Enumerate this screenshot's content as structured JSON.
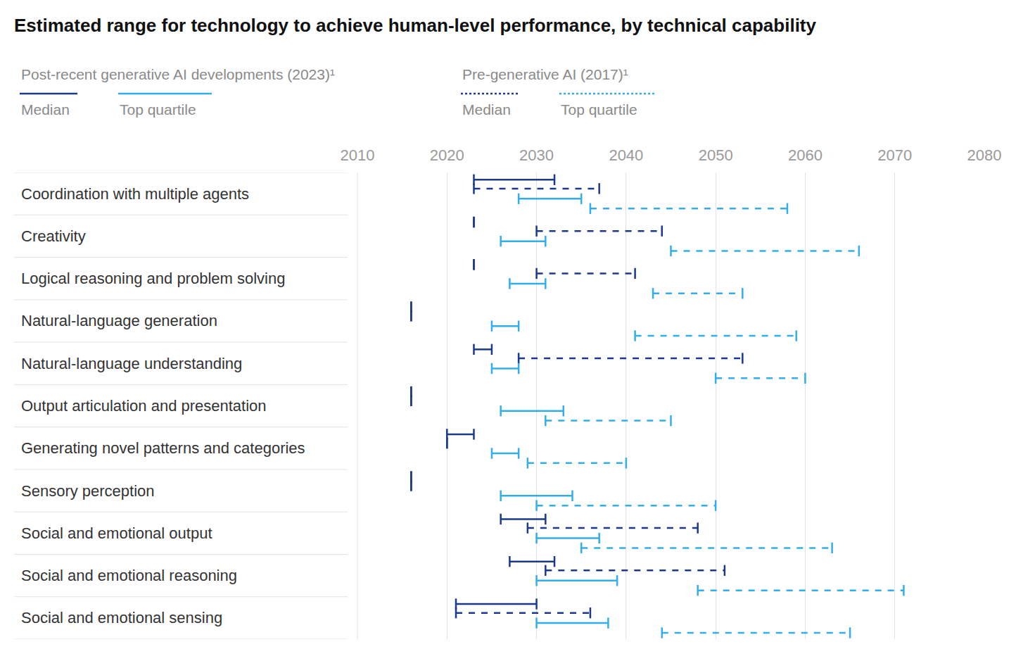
{
  "chart_data": {
    "type": "range",
    "title": "Estimated range for technology to achieve human-level performance, by technical capability",
    "orientation": "horizontal",
    "categories": [
      "Coordination with multiple agents",
      "Creativity",
      "Logical reasoning and problem solving",
      "Natural-language generation",
      "Natural-language understanding",
      "Output articulation and presentation",
      "Generating novel patterns and categories",
      "Sensory perception",
      "Social and emotional output",
      "Social and emotional reasoning",
      "Social and emotional sensing"
    ],
    "xlim": [
      2010,
      2080
    ],
    "xticks": [
      2010,
      2020,
      2030,
      2040,
      2050,
      2060,
      2070,
      2080
    ],
    "grid": true,
    "legend": "top left",
    "series": [
      {
        "name": "Median",
        "group": "Post-recent generative AI developments (2023)¹",
        "color": "#1b3a8c",
        "line_style": "solid",
        "start": [
          2023,
          2023,
          2023,
          2016,
          2023,
          2016,
          2020,
          2016,
          2026,
          2027,
          2021
        ],
        "end": [
          2032,
          2023,
          2023,
          2016,
          2025,
          2016,
          2023,
          2016,
          2031,
          2032,
          2030
        ]
      },
      {
        "name": "Median",
        "group": "Pre-generative AI (2017)¹",
        "color": "#1b3a8c",
        "line_style": "dash",
        "start": [
          2023,
          2030,
          2030,
          2016,
          2028,
          2016,
          2020,
          2016,
          2029,
          2031,
          2021
        ],
        "end": [
          2037,
          2044,
          2041,
          2016,
          2053,
          2016,
          2020,
          2016,
          2048,
          2051,
          2036
        ]
      },
      {
        "name": "Top quartile",
        "group": "Post-recent generative AI developments (2023)¹",
        "color": "#33aee8",
        "line_style": "solid",
        "start": [
          2028,
          2026,
          2027,
          2025,
          2025,
          2026,
          2025,
          2026,
          2030,
          2030,
          2030
        ],
        "end": [
          2035,
          2031,
          2031,
          2028,
          2028,
          2033,
          2028,
          2034,
          2037,
          2039,
          2038
        ]
      },
      {
        "name": "Top quartile",
        "group": "Pre-generative AI (2017)¹",
        "color": "#33aee8",
        "line_style": "dash",
        "start": [
          2036,
          2045,
          2043,
          2041,
          2050,
          2031,
          2029,
          2030,
          2035,
          2048,
          2044
        ],
        "end": [
          2058,
          2066,
          2053,
          2059,
          2060,
          2045,
          2040,
          2050,
          2063,
          2071,
          2065
        ]
      }
    ]
  }
}
